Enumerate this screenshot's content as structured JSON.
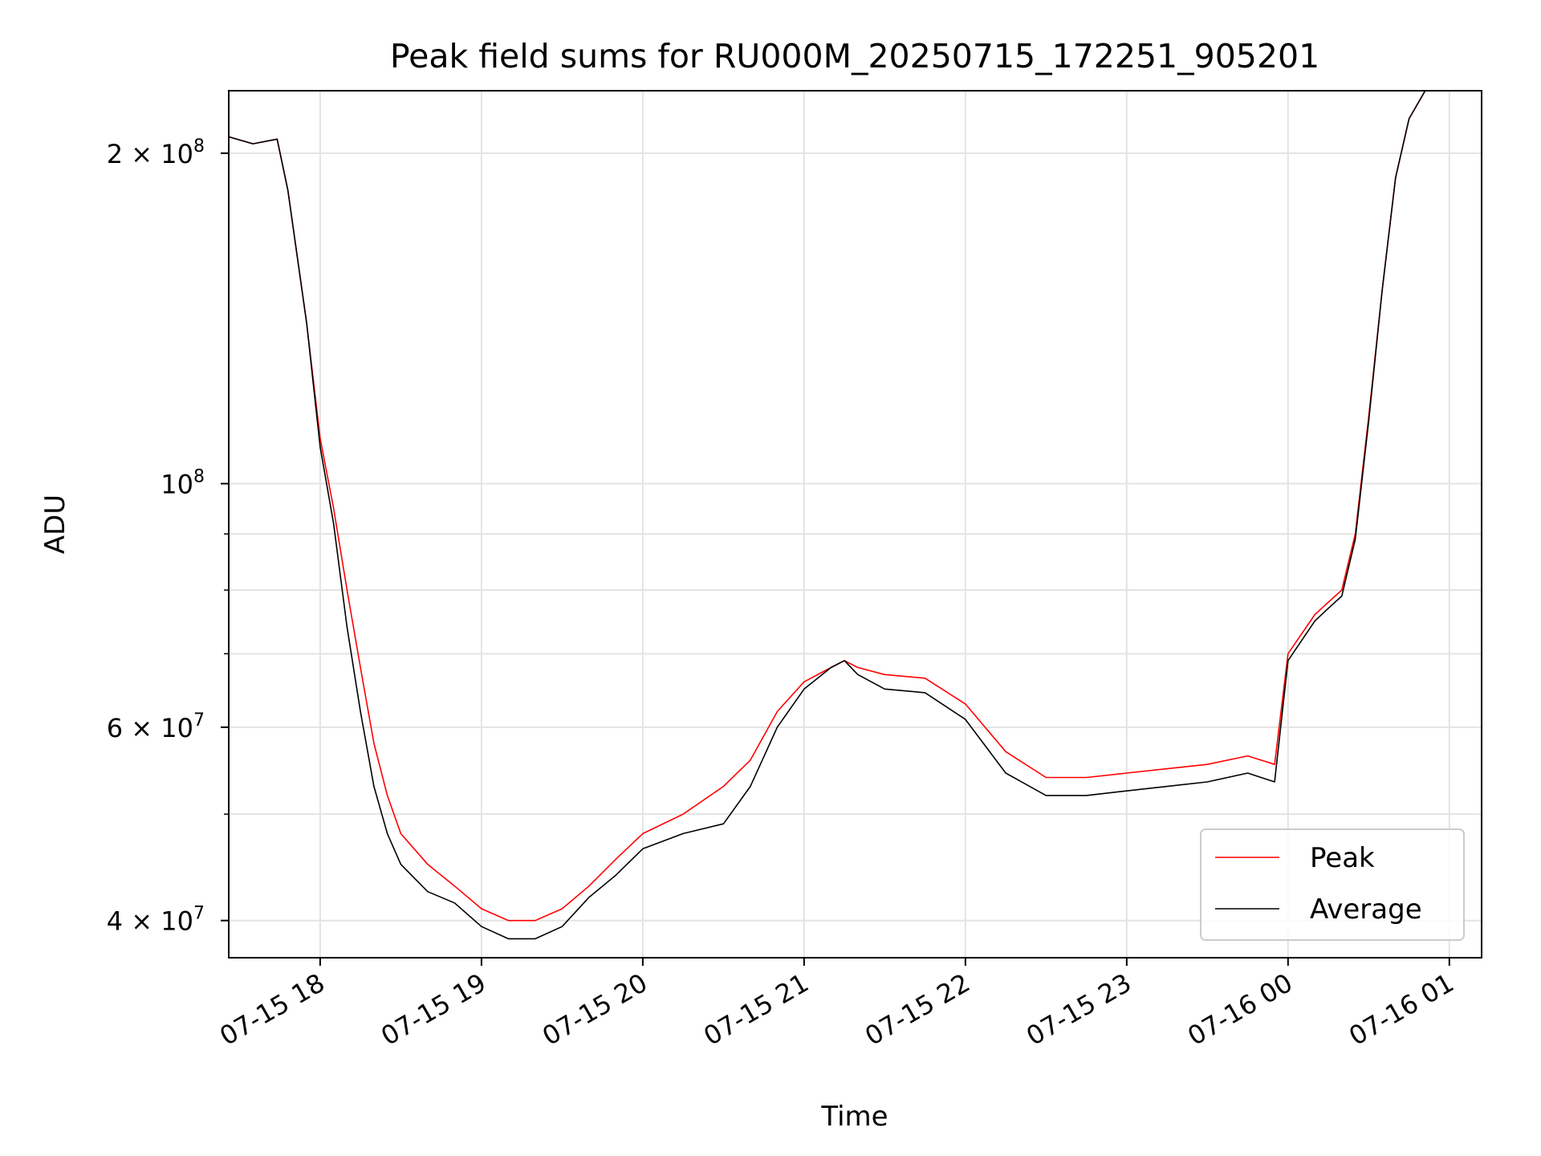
{
  "chart_data": {
    "type": "line",
    "title": "Peak field sums for RU000M_20250715_172251_905201",
    "xlabel": "Time",
    "ylabel": "ADU",
    "y_scale": "log",
    "xlim": [
      "2025-07-15 17:26",
      "2025-07-16 01:12"
    ],
    "ylim": [
      37000000,
      228000000
    ],
    "grid": true,
    "legend_position": "bottom-right",
    "x_ticks": [
      {
        "value": "2025-07-15 18:00",
        "label": "07-15 18"
      },
      {
        "value": "2025-07-15 19:00",
        "label": "07-15 19"
      },
      {
        "value": "2025-07-15 20:00",
        "label": "07-15 20"
      },
      {
        "value": "2025-07-15 21:00",
        "label": "07-15 21"
      },
      {
        "value": "2025-07-15 22:00",
        "label": "07-15 22"
      },
      {
        "value": "2025-07-15 23:00",
        "label": "07-15 23"
      },
      {
        "value": "2025-07-16 00:00",
        "label": "07-16 00"
      },
      {
        "value": "2025-07-16 01:00",
        "label": "07-16 01"
      }
    ],
    "y_ticks": [
      {
        "value": 40000000,
        "base": "4 × 10",
        "exp": "7"
      },
      {
        "value": 60000000,
        "base": "6 × 10",
        "exp": "7"
      },
      {
        "value": 100000000,
        "base": "10",
        "exp": "8"
      },
      {
        "value": 200000000,
        "base": "2 × 10",
        "exp": "8"
      }
    ],
    "y_minor_ticks": [
      50000000,
      70000000,
      80000000,
      90000000
    ],
    "series": [
      {
        "name": "Peak",
        "color": "#ff0000",
        "x": [
          "2025-07-15 17:26",
          "2025-07-15 17:35",
          "2025-07-15 17:44",
          "2025-07-15 17:48",
          "2025-07-15 17:55",
          "2025-07-15 18:00",
          "2025-07-15 18:05",
          "2025-07-15 18:10",
          "2025-07-15 18:15",
          "2025-07-15 18:20",
          "2025-07-15 18:25",
          "2025-07-15 18:30",
          "2025-07-15 18:40",
          "2025-07-15 18:50",
          "2025-07-15 19:00",
          "2025-07-15 19:10",
          "2025-07-15 19:20",
          "2025-07-15 19:30",
          "2025-07-15 19:40",
          "2025-07-15 19:50",
          "2025-07-15 20:00",
          "2025-07-15 20:15",
          "2025-07-15 20:30",
          "2025-07-15 20:40",
          "2025-07-15 20:50",
          "2025-07-15 21:00",
          "2025-07-15 21:10",
          "2025-07-15 21:15",
          "2025-07-15 21:20",
          "2025-07-15 21:30",
          "2025-07-15 21:45",
          "2025-07-15 22:00",
          "2025-07-15 22:15",
          "2025-07-15 22:30",
          "2025-07-15 22:45",
          "2025-07-15 23:00",
          "2025-07-15 23:15",
          "2025-07-15 23:30",
          "2025-07-15 23:45",
          "2025-07-15 23:50",
          "2025-07-15 23:55",
          "2025-07-16 00:00",
          "2025-07-16 00:10",
          "2025-07-16 00:15",
          "2025-07-16 00:20",
          "2025-07-16 00:25",
          "2025-07-16 00:30",
          "2025-07-16 00:35",
          "2025-07-16 00:40",
          "2025-07-16 00:45",
          "2025-07-16 00:51"
        ],
        "y": [
          207000000,
          204000000,
          206000000,
          185000000,
          140000000,
          110000000,
          95000000,
          80000000,
          68000000,
          58000000,
          52000000,
          48000000,
          45000000,
          43000000,
          41000000,
          40000000,
          40000000,
          41000000,
          43000000,
          45500000,
          48000000,
          50000000,
          53000000,
          56000000,
          62000000,
          66000000,
          68000000,
          69000000,
          68000000,
          67000000,
          66500000,
          63000000,
          57000000,
          54000000,
          54000000,
          54500000,
          55000000,
          55500000,
          56500000,
          56000000,
          55500000,
          70000000,
          76000000,
          78000000,
          80000000,
          90000000,
          115000000,
          150000000,
          190000000,
          215000000,
          228000000
        ]
      },
      {
        "name": "Average",
        "color": "#000000",
        "x": [
          "2025-07-15 17:26",
          "2025-07-15 17:35",
          "2025-07-15 17:44",
          "2025-07-15 17:48",
          "2025-07-15 17:55",
          "2025-07-15 18:00",
          "2025-07-15 18:05",
          "2025-07-15 18:10",
          "2025-07-15 18:15",
          "2025-07-15 18:20",
          "2025-07-15 18:25",
          "2025-07-15 18:30",
          "2025-07-15 18:40",
          "2025-07-15 18:50",
          "2025-07-15 19:00",
          "2025-07-15 19:10",
          "2025-07-15 19:20",
          "2025-07-15 19:30",
          "2025-07-15 19:40",
          "2025-07-15 19:50",
          "2025-07-15 20:00",
          "2025-07-15 20:15",
          "2025-07-15 20:30",
          "2025-07-15 20:40",
          "2025-07-15 20:50",
          "2025-07-15 21:00",
          "2025-07-15 21:10",
          "2025-07-15 21:15",
          "2025-07-15 21:20",
          "2025-07-15 21:30",
          "2025-07-15 21:45",
          "2025-07-15 22:00",
          "2025-07-15 22:15",
          "2025-07-15 22:30",
          "2025-07-15 22:45",
          "2025-07-15 23:00",
          "2025-07-15 23:15",
          "2025-07-15 23:30",
          "2025-07-15 23:45",
          "2025-07-15 23:50",
          "2025-07-15 23:55",
          "2025-07-16 00:00",
          "2025-07-16 00:10",
          "2025-07-16 00:15",
          "2025-07-16 00:20",
          "2025-07-16 00:25",
          "2025-07-16 00:30",
          "2025-07-16 00:35",
          "2025-07-16 00:40",
          "2025-07-16 00:45",
          "2025-07-16 00:51"
        ],
        "y": [
          207000000,
          204000000,
          206000000,
          185000000,
          140000000,
          108000000,
          92000000,
          74000000,
          62000000,
          53000000,
          48000000,
          45000000,
          42500000,
          41500000,
          39500000,
          38500000,
          38500000,
          39500000,
          42000000,
          44000000,
          46500000,
          48000000,
          49000000,
          53000000,
          60000000,
          65000000,
          68000000,
          69000000,
          67000000,
          65000000,
          64500000,
          61000000,
          54500000,
          52000000,
          52000000,
          52500000,
          53000000,
          53500000,
          54500000,
          54000000,
          53500000,
          69000000,
          75000000,
          77000000,
          79000000,
          89000000,
          114000000,
          150000000,
          190000000,
          215000000,
          228000000
        ]
      }
    ]
  }
}
